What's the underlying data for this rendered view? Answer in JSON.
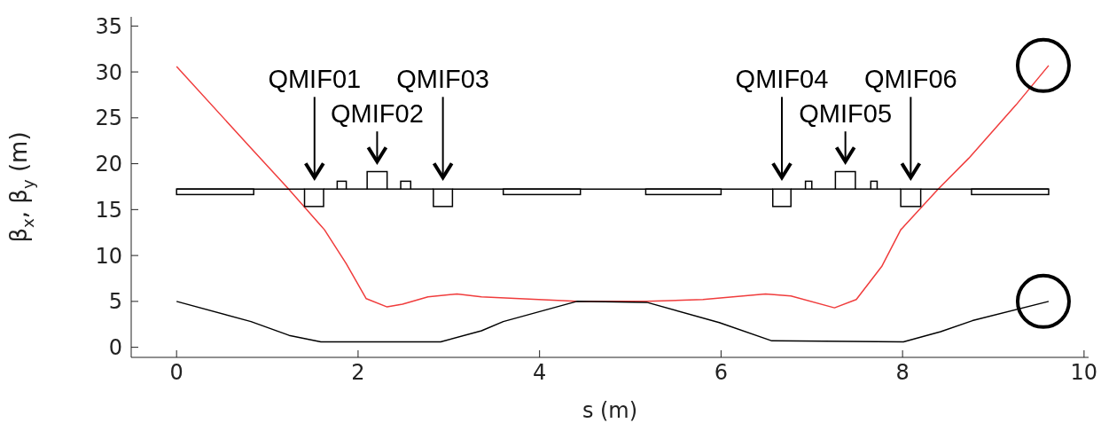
{
  "chart_data": {
    "type": "line",
    "xlabel": "s (m)",
    "ylabel": "β$_{x}$, β$_{y}$ (m)",
    "xlim": [
      -0.5,
      10.05
    ],
    "ylim": [
      -1.1,
      36
    ],
    "xticks": [
      0,
      2,
      4,
      6,
      8,
      10
    ],
    "yticks": [
      0,
      5,
      10,
      15,
      20,
      25,
      30,
      35
    ],
    "grid": false,
    "marker": "none",
    "line_style": "solid",
    "series": [
      {
        "color": "#f03c3c",
        "x": [
          0,
          0.82,
          1.22,
          1.63,
          1.87,
          2.09,
          2.32,
          2.49,
          2.77,
          3.09,
          3.36,
          3.78,
          4.41,
          4.77,
          5.18,
          5.8,
          6.49,
          6.77,
          7.25,
          7.49,
          7.77,
          7.98,
          8.39,
          8.73,
          9.25,
          9.61
        ],
        "values": [
          30.6,
          21.7,
          17.4,
          12.8,
          9.1,
          5.3,
          4.4,
          4.7,
          5.5,
          5.8,
          5.5,
          5.3,
          5.0,
          5.0,
          5.0,
          5.2,
          5.8,
          5.6,
          4.3,
          5.2,
          8.8,
          12.8,
          17.2,
          20.6,
          26.4,
          30.7
        ]
      },
      {
        "color": "#000000",
        "x": [
          0,
          0.82,
          1.24,
          1.59,
          2.91,
          3.36,
          3.6,
          4.41,
          5.18,
          5.98,
          6.56,
          8.01,
          8.42,
          8.77,
          9.61
        ],
        "values": [
          5.0,
          2.8,
          1.3,
          0.6,
          0.6,
          1.8,
          2.8,
          5.0,
          4.9,
          2.7,
          0.7,
          0.6,
          1.7,
          2.9,
          5.0
        ]
      }
    ],
    "annotations": [
      "QMIF01",
      "QMIF02",
      "QMIF03",
      "QMIF04",
      "QMIF05",
      "QMIF06"
    ]
  }
}
